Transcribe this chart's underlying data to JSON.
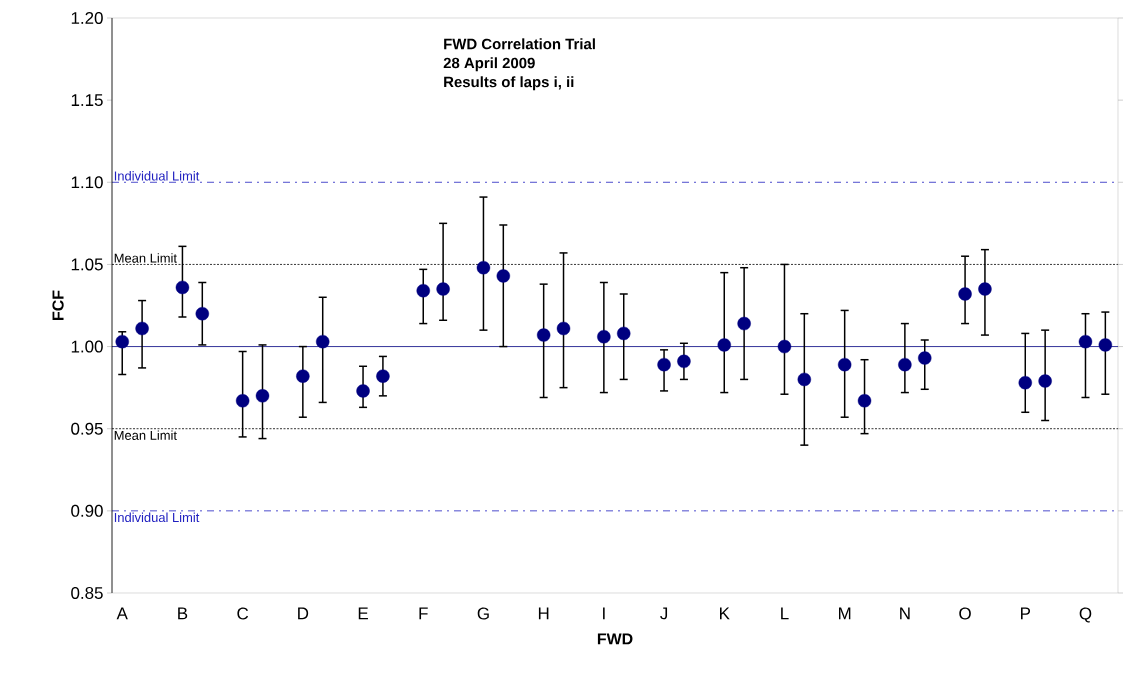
{
  "chart_data": {
    "type": "scatter",
    "title": "FWD Correlation Trial",
    "subtitle": "28 April 2009",
    "annotations": [
      "Results of laps i, ii"
    ],
    "xlabel": "FWD",
    "ylabel": "FCF",
    "categories": [
      "A",
      "B",
      "C",
      "D",
      "E",
      "F",
      "G",
      "H",
      "I",
      "J",
      "K",
      "L",
      "M",
      "N",
      "O",
      "P",
      "Q"
    ],
    "ylim": [
      0.85,
      1.2
    ],
    "yticks": [
      {
        "value": 0.85,
        "label": "0.85"
      },
      {
        "value": 0.9,
        "label": "0.90"
      },
      {
        "value": 0.95,
        "label": "0.95"
      },
      {
        "value": 1.0,
        "label": "1.00"
      },
      {
        "value": 1.05,
        "label": "1.05"
      },
      {
        "value": 1.1,
        "label": "1.10"
      },
      {
        "value": 1.15,
        "label": "1.15"
      },
      {
        "value": 1.2,
        "label": "1.20"
      }
    ],
    "marker": "circle",
    "grid": false,
    "series": [
      {
        "color": "#000080",
        "values": [
          1.003,
          1.036,
          0.967,
          0.982,
          0.973,
          1.034,
          1.048,
          1.007,
          1.006,
          0.989,
          1.001,
          1.0,
          0.989,
          0.989,
          1.032,
          0.978,
          1.003
        ],
        "errors": [
          [
            0.983,
            1.009
          ],
          [
            1.018,
            1.061
          ],
          [
            0.945,
            0.997
          ],
          [
            0.957,
            1.0
          ],
          [
            0.963,
            0.988
          ],
          [
            1.014,
            1.047
          ],
          [
            1.01,
            1.091
          ],
          [
            0.969,
            1.038
          ],
          [
            0.972,
            1.039
          ],
          [
            0.973,
            0.998
          ],
          [
            0.972,
            1.045
          ],
          [
            0.971,
            1.05
          ],
          [
            0.957,
            1.022
          ],
          [
            0.972,
            1.014
          ],
          [
            1.014,
            1.055
          ],
          [
            0.96,
            1.008
          ],
          [
            0.969,
            1.02
          ]
        ]
      },
      {
        "color": "#000080",
        "values": [
          1.011,
          1.02,
          0.97,
          1.003,
          0.982,
          1.035,
          1.043,
          1.011,
          1.008,
          0.991,
          1.014,
          0.98,
          0.967,
          0.993,
          1.035,
          0.979,
          1.001
        ],
        "errors": [
          [
            0.987,
            1.028
          ],
          [
            1.001,
            1.039
          ],
          [
            0.944,
            1.001
          ],
          [
            0.966,
            1.03
          ],
          [
            0.97,
            0.994
          ],
          [
            1.016,
            1.075
          ],
          [
            1.0,
            1.074
          ],
          [
            0.975,
            1.057
          ],
          [
            0.98,
            1.032
          ],
          [
            0.98,
            1.002
          ],
          [
            0.98,
            1.048
          ],
          [
            0.94,
            1.02
          ],
          [
            0.947,
            0.992
          ],
          [
            0.974,
            1.004
          ],
          [
            1.007,
            1.059
          ],
          [
            0.955,
            1.01
          ],
          [
            0.971,
            1.021
          ]
        ]
      }
    ],
    "ref_lines": [
      {
        "axis": "y",
        "value": 1.1,
        "label": "Individual Limit",
        "color": "#2020c0",
        "line_style": "dashdot"
      },
      {
        "axis": "y",
        "value": 1.05,
        "label": "Mean Limit",
        "color": "#000000",
        "line_style": "dotted"
      },
      {
        "axis": "y",
        "value": 1.0,
        "color": "#000080",
        "line_style": "solid"
      },
      {
        "axis": "y",
        "value": 0.95,
        "label": "Mean Limit",
        "color": "#000000",
        "line_style": "dotted"
      },
      {
        "axis": "y",
        "value": 0.9,
        "label": "Individual Limit",
        "color": "#2020c0",
        "line_style": "dashdot"
      }
    ]
  }
}
